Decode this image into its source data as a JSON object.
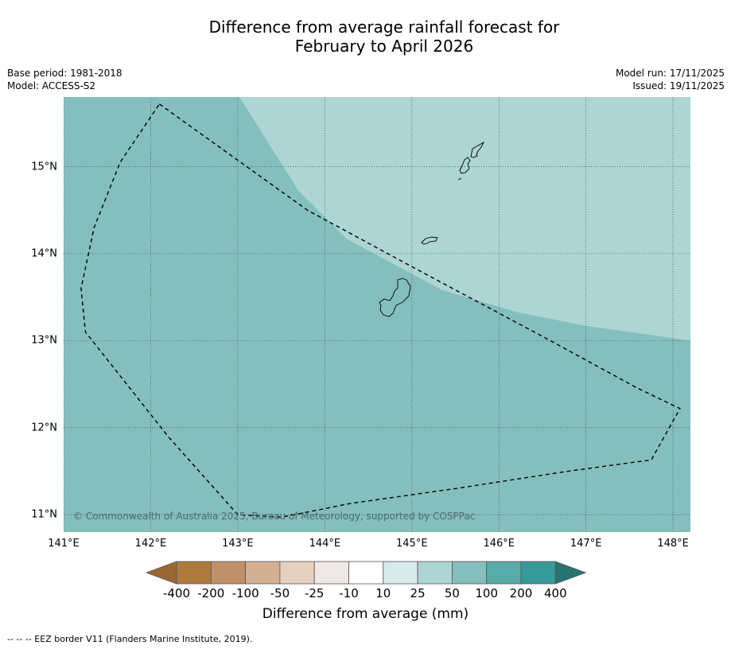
{
  "title": {
    "line1": "Difference from average rainfall forecast for",
    "line2": "February to April 2026"
  },
  "meta": {
    "base_period": "Base period: 1981-2018",
    "model": "Model: ACCESS-S2",
    "model_run": "Model run: 17/11/2025",
    "issued": "Issued: 19/11/2025"
  },
  "map": {
    "background_category": "50 to 100",
    "background_color": "#84bfbe",
    "overlay_category": "25 to 50",
    "overlay_color": "#acd5d4",
    "latitudes": [
      {
        "value": 15,
        "label": "15°N"
      },
      {
        "value": 14,
        "label": "14°N"
      },
      {
        "value": 13,
        "label": "13°N"
      },
      {
        "value": 12,
        "label": "12°N"
      },
      {
        "value": 11,
        "label": "11°N"
      }
    ],
    "longitudes": [
      {
        "value": 141,
        "label": "141°E"
      },
      {
        "value": 142,
        "label": "142°E"
      },
      {
        "value": 143,
        "label": "143°E"
      },
      {
        "value": 144,
        "label": "144°E"
      },
      {
        "value": 145,
        "label": "145°E"
      },
      {
        "value": 146,
        "label": "146°E"
      },
      {
        "value": 147,
        "label": "147°E"
      },
      {
        "value": 148,
        "label": "148°E"
      }
    ],
    "extent": {
      "lon_min": 141,
      "lon_max": 148.2,
      "lat_min": 10.8,
      "lat_max": 15.8
    },
    "eez_border_coords": [
      [
        142.1,
        15.72
      ],
      [
        143.8,
        14.5
      ],
      [
        145.0,
        13.85
      ],
      [
        146.5,
        13.05
      ],
      [
        147.6,
        12.45
      ],
      [
        148.08,
        12.22
      ],
      [
        147.75,
        11.63
      ],
      [
        146.8,
        11.5
      ],
      [
        145.5,
        11.3
      ],
      [
        144.3,
        11.13
      ],
      [
        143.5,
        10.97
      ],
      [
        143.0,
        11.0
      ],
      [
        142.2,
        11.9
      ],
      [
        141.25,
        13.1
      ],
      [
        141.2,
        13.6
      ],
      [
        141.35,
        14.3
      ],
      [
        141.65,
        15.05
      ],
      [
        142.1,
        15.72
      ]
    ],
    "overlay_boundary_coords": [
      [
        143.02,
        15.8
      ],
      [
        143.7,
        14.72
      ],
      [
        144.25,
        14.17
      ],
      [
        145.35,
        13.58
      ],
      [
        146.2,
        13.33
      ],
      [
        147.0,
        13.17
      ],
      [
        148.2,
        13.0
      ]
    ],
    "copyright": "© Commonwealth of Australia 2025, Bureau of Meteorology, supported by COSPPac"
  },
  "colorbar": {
    "title": "Difference from average (mm)",
    "labels": [
      "-400",
      "-200",
      "-100",
      "-50",
      "-25",
      "-10",
      "10",
      "25",
      "50",
      "100",
      "200",
      "400"
    ],
    "colors": [
      "#9a6632",
      "#b07a3e",
      "#c09068",
      "#d4b092",
      "#e6d0bf",
      "#eee9e6",
      "#ffffff",
      "#d6ebea",
      "#acd5d4",
      "#84bfbe",
      "#58aba9",
      "#359a98",
      "#277471"
    ]
  },
  "footer": "--  --  -- EEZ border V11 (Flanders Marine Institute, 2019)."
}
